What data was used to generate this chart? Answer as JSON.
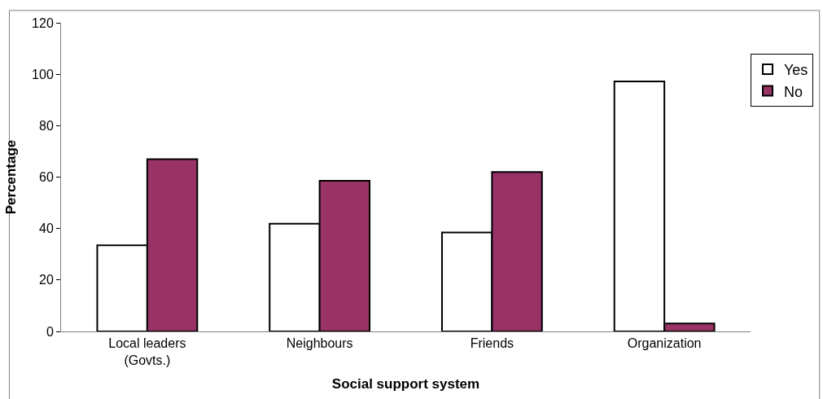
{
  "chart_data": {
    "type": "bar",
    "xlabel": "Social support system",
    "ylabel": "Percentage",
    "categories": [
      "Local leaders\n(Govts.)",
      "Neighbours",
      "Friends",
      "Organization"
    ],
    "series": [
      {
        "name": "Yes",
        "color": "#ffffff",
        "values": [
          33.5,
          41.9,
          38.5,
          97.2
        ]
      },
      {
        "name": "No",
        "color": "#993366",
        "values": [
          67.0,
          58.6,
          62.0,
          3.1
        ]
      }
    ],
    "ylim": [
      0,
      120
    ],
    "yticks": [
      0,
      20,
      40,
      60,
      80,
      100,
      120
    ],
    "legend": "top right"
  }
}
